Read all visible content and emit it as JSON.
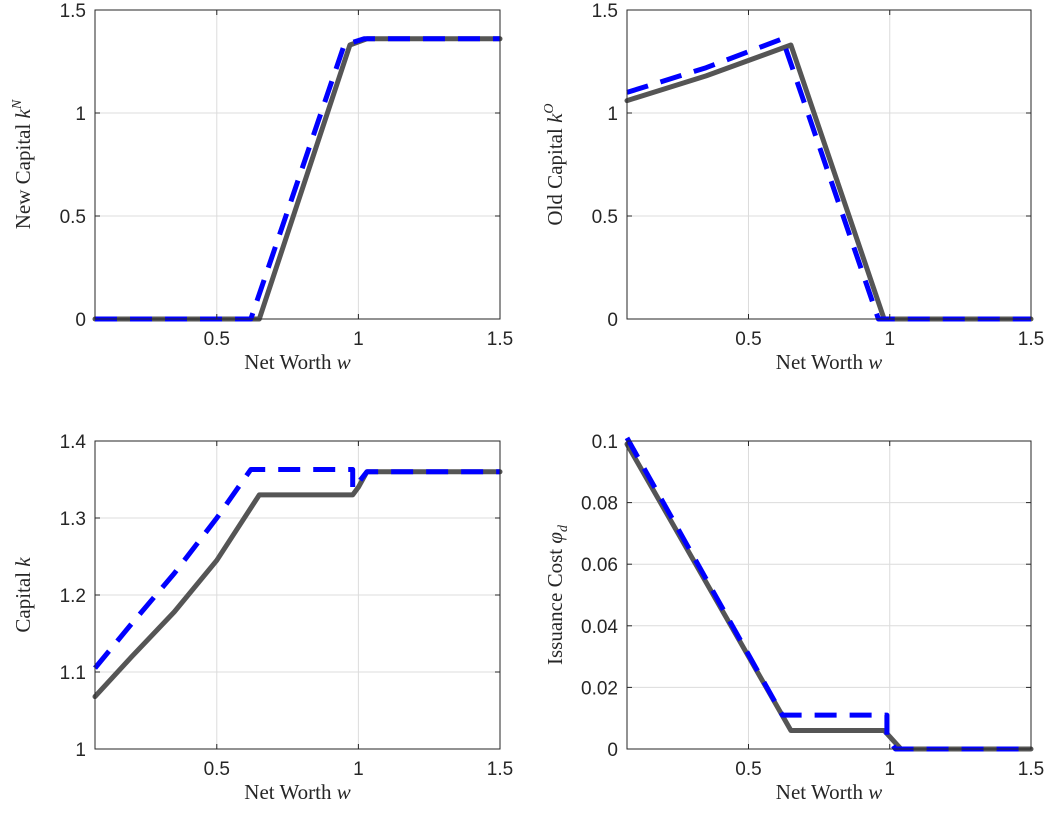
{
  "colors": {
    "solid": "#555555",
    "dashed": "#0000ff",
    "axis": "#262626",
    "grid": "#dcdcdc"
  },
  "chart_data": [
    {
      "type": "line",
      "xlabel": "Net Worth",
      "xlabel_var": "w",
      "ylabel": "New Capital",
      "ylabel_var": "k",
      "ylabel_sup": "N",
      "ylabel_sub": "",
      "xlim": [
        0.07,
        1.5
      ],
      "ylim": [
        0,
        1.5
      ],
      "xticks": [
        0.5,
        1,
        1.5
      ],
      "xtick_labels": [
        "0.5",
        "1",
        "1.5"
      ],
      "yticks": [
        0,
        0.5,
        1,
        1.5
      ],
      "ytick_labels": [
        "0",
        "0.5",
        "1",
        "1.5"
      ],
      "grid": true,
      "series": [
        {
          "style": "solid",
          "x": [
            0.07,
            0.65,
            0.97,
            1.03,
            1.5
          ],
          "y": [
            0,
            0,
            1.33,
            1.36,
            1.36
          ]
        },
        {
          "style": "dashed",
          "x": [
            0.07,
            0.62,
            0.95,
            1.02,
            1.5
          ],
          "y": [
            0,
            0,
            1.33,
            1.36,
            1.36
          ]
        }
      ]
    },
    {
      "type": "line",
      "xlabel": "Net Worth",
      "xlabel_var": "w",
      "ylabel": "Old Capital",
      "ylabel_var": "k",
      "ylabel_sup": "O",
      "ylabel_sub": "",
      "xlim": [
        0.07,
        1.5
      ],
      "ylim": [
        0,
        1.5
      ],
      "xticks": [
        0.5,
        1,
        1.5
      ],
      "xtick_labels": [
        "0.5",
        "1",
        "1.5"
      ],
      "yticks": [
        0,
        0.5,
        1,
        1.5
      ],
      "ytick_labels": [
        "0",
        "0.5",
        "1",
        "1.5"
      ],
      "grid": true,
      "series": [
        {
          "style": "solid",
          "x": [
            0.07,
            0.35,
            0.65,
            0.98,
            1.5
          ],
          "y": [
            1.06,
            1.18,
            1.33,
            0,
            0
          ]
        },
        {
          "style": "dashed",
          "x": [
            0.07,
            0.35,
            0.62,
            0.96,
            1.5
          ],
          "y": [
            1.1,
            1.22,
            1.36,
            0,
            0
          ]
        }
      ]
    },
    {
      "type": "line",
      "xlabel": "Net Worth",
      "xlabel_var": "w",
      "ylabel": "Capital",
      "ylabel_var": "k",
      "ylabel_sup": "",
      "ylabel_sub": "",
      "xlim": [
        0.07,
        1.5
      ],
      "ylim": [
        1,
        1.4
      ],
      "xticks": [
        0.5,
        1,
        1.5
      ],
      "xtick_labels": [
        "0.5",
        "1",
        "1.5"
      ],
      "yticks": [
        1,
        1.1,
        1.2,
        1.3,
        1.4
      ],
      "ytick_labels": [
        "1",
        "1.1",
        "1.2",
        "1.3",
        "1.4"
      ],
      "grid": true,
      "series": [
        {
          "style": "solid",
          "x": [
            0.07,
            0.2,
            0.35,
            0.5,
            0.65,
            0.98,
            1.0,
            1.03,
            1.5
          ],
          "y": [
            1.068,
            1.12,
            1.178,
            1.245,
            1.33,
            1.33,
            1.34,
            1.36,
            1.36
          ]
        },
        {
          "style": "dashed",
          "x": [
            0.07,
            0.2,
            0.35,
            0.5,
            0.62,
            0.98,
            0.98,
            1.0,
            1.03,
            1.5
          ],
          "y": [
            1.105,
            1.163,
            1.228,
            1.3,
            1.363,
            1.363,
            1.338,
            1.346,
            1.36,
            1.36
          ]
        }
      ]
    },
    {
      "type": "line",
      "xlabel": "Net Worth",
      "xlabel_var": "w",
      "ylabel": "Issuance Cost",
      "ylabel_var": "φ",
      "ylabel_sup": "",
      "ylabel_sub": "d",
      "xlim": [
        0.07,
        1.5
      ],
      "ylim": [
        0,
        0.1
      ],
      "xticks": [
        0.5,
        1,
        1.5
      ],
      "xtick_labels": [
        "0.5",
        "1",
        "1.5"
      ],
      "yticks": [
        0,
        0.02,
        0.04,
        0.06,
        0.08,
        0.1
      ],
      "ytick_labels": [
        "0",
        "0.02",
        "0.04",
        "0.06",
        "0.08",
        "0.1"
      ],
      "grid": true,
      "series": [
        {
          "style": "solid",
          "x": [
            0.07,
            0.65,
            0.98,
            1.04,
            1.5
          ],
          "y": [
            0.099,
            0.006,
            0.006,
            0,
            0
          ]
        },
        {
          "style": "dashed",
          "x": [
            0.07,
            0.62,
            0.99,
            0.99,
            1.02,
            1.5
          ],
          "y": [
            0.101,
            0.011,
            0.011,
            0.004,
            0,
            0
          ]
        }
      ]
    }
  ]
}
